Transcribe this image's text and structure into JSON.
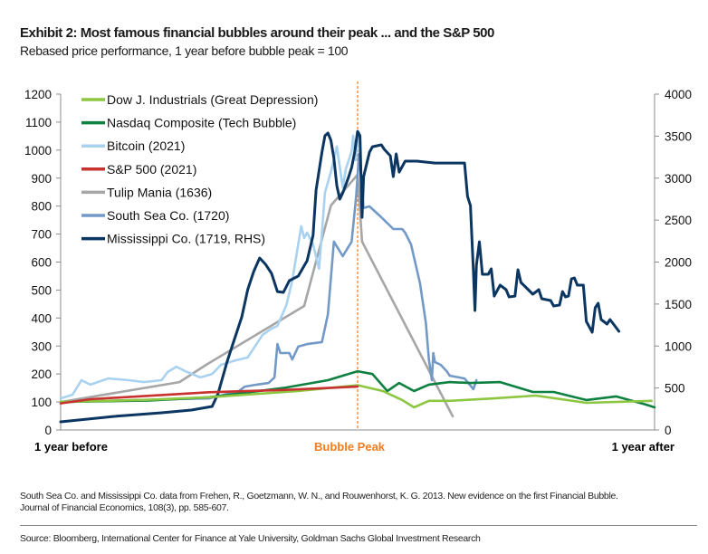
{
  "title": "Exhibit 2: Most famous financial bubbles around their peak ... and the S&P 500",
  "subtitle": "Rebased price performance, 1 year before bubble peak = 100",
  "footnote_line1": "South Sea Co. and Mississippi Co. data from Frehen, R., Goetzmann, W. N., and Rouwenhorst, K. G. 2013. New evidence on the first Financial Bubble.",
  "footnote_line2": "Journal of Financial Economics, 108(3), pp. 585-607.",
  "source": "Source: Bloomberg, International Center for Finance at Yale University, Goldman Sachs Global Investment Research",
  "chart_data": {
    "type": "line",
    "x_tick_labels": [
      "1 year before",
      "Bubble Peak",
      "1 year after"
    ],
    "xlim": [
      -1,
      1
    ],
    "ylim_left": [
      0,
      1200
    ],
    "yticks_left": [
      0,
      100,
      200,
      300,
      400,
      500,
      600,
      700,
      800,
      900,
      1000,
      1100,
      1200
    ],
    "ylim_right": [
      0,
      4000
    ],
    "yticks_right": [
      0,
      500,
      1000,
      1500,
      2000,
      2500,
      3000,
      3500,
      4000
    ],
    "grid": false,
    "legend_position": "top-left",
    "peak_line_color": "#F47C20",
    "series": [
      {
        "name": "Dow J. Industrials (Great Depression)",
        "color": "#8DC641",
        "axis": "left",
        "points": [
          [
            -1,
            100
          ],
          [
            -0.7,
            108
          ],
          [
            -0.5,
            117
          ],
          [
            -0.2,
            139
          ],
          [
            0,
            160
          ],
          [
            0.085,
            139
          ],
          [
            0.15,
            107
          ],
          [
            0.19,
            81
          ],
          [
            0.24,
            104
          ],
          [
            0.31,
            104
          ],
          [
            0.46,
            113
          ],
          [
            0.6,
            123
          ],
          [
            0.77,
            97
          ],
          [
            0.99,
            104
          ]
        ]
      },
      {
        "name": "Nasdaq Composite (Tech Bubble)",
        "color": "#0E8040",
        "axis": "left",
        "points": [
          [
            -1,
            100
          ],
          [
            -0.7,
            105
          ],
          [
            -0.5,
            117
          ],
          [
            -0.25,
            150
          ],
          [
            -0.1,
            178
          ],
          [
            0,
            210
          ],
          [
            0.05,
            200
          ],
          [
            0.1,
            139
          ],
          [
            0.14,
            168
          ],
          [
            0.19,
            139
          ],
          [
            0.24,
            162
          ],
          [
            0.31,
            171
          ],
          [
            0.38,
            168
          ],
          [
            0.48,
            171
          ],
          [
            0.59,
            136
          ],
          [
            0.66,
            136
          ],
          [
            0.77,
            107
          ],
          [
            0.87,
            120
          ],
          [
            0.97,
            91
          ],
          [
            1.0,
            81
          ]
        ]
      },
      {
        "name": "Bitcoin (2021)",
        "color": "#A9D2F0",
        "axis": "left",
        "points": [
          [
            -1,
            113
          ],
          [
            -0.96,
            126
          ],
          [
            -0.93,
            178
          ],
          [
            -0.9,
            162
          ],
          [
            -0.84,
            184
          ],
          [
            -0.77,
            178
          ],
          [
            -0.72,
            171
          ],
          [
            -0.66,
            178
          ],
          [
            -0.64,
            207
          ],
          [
            -0.61,
            226
          ],
          [
            -0.58,
            210
          ],
          [
            -0.53,
            188
          ],
          [
            -0.49,
            200
          ],
          [
            -0.46,
            233
          ],
          [
            -0.41,
            249
          ],
          [
            -0.37,
            259
          ],
          [
            -0.32,
            340
          ],
          [
            -0.29,
            362
          ],
          [
            -0.27,
            372
          ],
          [
            -0.24,
            446
          ],
          [
            -0.22,
            534
          ],
          [
            -0.2,
            663
          ],
          [
            -0.19,
            728
          ],
          [
            -0.18,
            686
          ],
          [
            -0.17,
            705
          ],
          [
            -0.15,
            663
          ],
          [
            -0.13,
            576
          ],
          [
            -0.12,
            705
          ],
          [
            -0.11,
            848
          ],
          [
            -0.09,
            922
          ],
          [
            -0.07,
            1013
          ],
          [
            -0.05,
            867
          ],
          [
            -0.04,
            932
          ],
          [
            -0.02,
            996
          ],
          [
            -0.015,
            1051
          ],
          [
            -0.006,
            964
          ],
          [
            0,
            1051
          ]
        ]
      },
      {
        "name": "S&P 500 (2021)",
        "color": "#C8312E",
        "axis": "left",
        "points": [
          [
            -1,
            95
          ],
          [
            -0.9,
            110
          ],
          [
            -0.5,
            135
          ],
          [
            -0.25,
            143
          ],
          [
            0,
            155
          ]
        ]
      },
      {
        "name": "Tulip Mania (1636)",
        "color": "#A6A6A6",
        "axis": "left",
        "points": [
          [
            -1,
            100
          ],
          [
            -0.6,
            171
          ],
          [
            -0.51,
            233
          ],
          [
            -0.18,
            443
          ],
          [
            -0.09,
            802
          ],
          [
            0,
            912
          ],
          [
            0.015,
            673
          ],
          [
            0.32,
            49
          ]
        ]
      },
      {
        "name": "South Sea Co. (1720)",
        "color": "#7399C6",
        "axis": "left",
        "points": [
          [
            -1,
            100
          ],
          [
            -0.5,
            113
          ],
          [
            -0.4,
            139
          ],
          [
            -0.38,
            155
          ],
          [
            -0.34,
            162
          ],
          [
            -0.3,
            168
          ],
          [
            -0.28,
            188
          ],
          [
            -0.27,
            307
          ],
          [
            -0.26,
            275
          ],
          [
            -0.23,
            275
          ],
          [
            -0.22,
            252
          ],
          [
            -0.2,
            298
          ],
          [
            -0.17,
            307
          ],
          [
            -0.12,
            314
          ],
          [
            -0.1,
            414
          ],
          [
            -0.08,
            673
          ],
          [
            -0.05,
            621
          ],
          [
            -0.02,
            673
          ],
          [
            -0.005,
            835
          ],
          [
            0.005,
            987
          ],
          [
            0.02,
            793
          ],
          [
            0.04,
            799
          ],
          [
            0.08,
            760
          ],
          [
            0.12,
            718
          ],
          [
            0.15,
            718
          ],
          [
            0.16,
            705
          ],
          [
            0.18,
            663
          ],
          [
            0.21,
            524
          ],
          [
            0.23,
            382
          ],
          [
            0.24,
            252
          ],
          [
            0.25,
            178
          ],
          [
            0.255,
            275
          ],
          [
            0.26,
            243
          ],
          [
            0.28,
            233
          ],
          [
            0.3,
            210
          ],
          [
            0.31,
            194
          ],
          [
            0.36,
            184
          ],
          [
            0.39,
            146
          ],
          [
            0.4,
            178
          ]
        ]
      },
      {
        "name": "Mississippi Co. (1719, RHS)",
        "color": "#0B3662",
        "axis": "right",
        "points": [
          [
            -1,
            97
          ],
          [
            -0.82,
            162
          ],
          [
            -0.66,
            205
          ],
          [
            -0.56,
            237
          ],
          [
            -0.49,
            280
          ],
          [
            -0.47,
            431
          ],
          [
            -0.44,
            809
          ],
          [
            -0.42,
            1024
          ],
          [
            -0.39,
            1348
          ],
          [
            -0.37,
            1671
          ],
          [
            -0.35,
            1887
          ],
          [
            -0.33,
            2048
          ],
          [
            -0.31,
            1973
          ],
          [
            -0.29,
            1865
          ],
          [
            -0.27,
            1649
          ],
          [
            -0.25,
            1639
          ],
          [
            -0.23,
            1779
          ],
          [
            -0.2,
            1833
          ],
          [
            -0.17,
            2016
          ],
          [
            -0.15,
            2318
          ],
          [
            -0.14,
            2857
          ],
          [
            -0.12,
            3309
          ],
          [
            -0.11,
            3504
          ],
          [
            -0.1,
            3536
          ],
          [
            -0.09,
            3450
          ],
          [
            -0.08,
            3234
          ],
          [
            -0.07,
            2911
          ],
          [
            -0.06,
            2749
          ],
          [
            -0.05,
            2824
          ],
          [
            -0.03,
            3018
          ],
          [
            -0.02,
            3126
          ],
          [
            -0.01,
            3309
          ],
          [
            0,
            3557
          ],
          [
            0.008,
            3504
          ],
          [
            0.015,
            2533
          ],
          [
            0.02,
            3018
          ],
          [
            0.04,
            3309
          ],
          [
            0.05,
            3374
          ],
          [
            0.08,
            3396
          ],
          [
            0.09,
            3342
          ],
          [
            0.11,
            3266
          ],
          [
            0.12,
            3018
          ],
          [
            0.13,
            3288
          ],
          [
            0.14,
            3072
          ],
          [
            0.16,
            3202
          ],
          [
            0.2,
            3202
          ],
          [
            0.26,
            3180
          ],
          [
            0.36,
            3180
          ],
          [
            0.37,
            2781
          ],
          [
            0.38,
            2673
          ],
          [
            0.39,
            1887
          ],
          [
            0.395,
            1423
          ],
          [
            0.4,
            1962
          ],
          [
            0.41,
            2242
          ],
          [
            0.42,
            1854
          ],
          [
            0.44,
            1854
          ],
          [
            0.45,
            1919
          ],
          [
            0.46,
            1595
          ],
          [
            0.48,
            1725
          ],
          [
            0.5,
            1671
          ],
          [
            0.51,
            1585
          ],
          [
            0.53,
            1595
          ],
          [
            0.54,
            1908
          ],
          [
            0.55,
            1757
          ],
          [
            0.59,
            1617
          ],
          [
            0.61,
            1671
          ],
          [
            0.62,
            1563
          ],
          [
            0.65,
            1542
          ],
          [
            0.66,
            1477
          ],
          [
            0.68,
            1488
          ],
          [
            0.69,
            1649
          ],
          [
            0.7,
            1585
          ],
          [
            0.71,
            1595
          ],
          [
            0.72,
            1800
          ],
          [
            0.73,
            1811
          ],
          [
            0.74,
            1725
          ],
          [
            0.76,
            1725
          ],
          [
            0.77,
            1294
          ],
          [
            0.79,
            1164
          ],
          [
            0.8,
            1455
          ],
          [
            0.81,
            1509
          ],
          [
            0.82,
            1315
          ],
          [
            0.84,
            1261
          ],
          [
            0.85,
            1315
          ],
          [
            0.88,
            1175
          ]
        ]
      }
    ]
  }
}
